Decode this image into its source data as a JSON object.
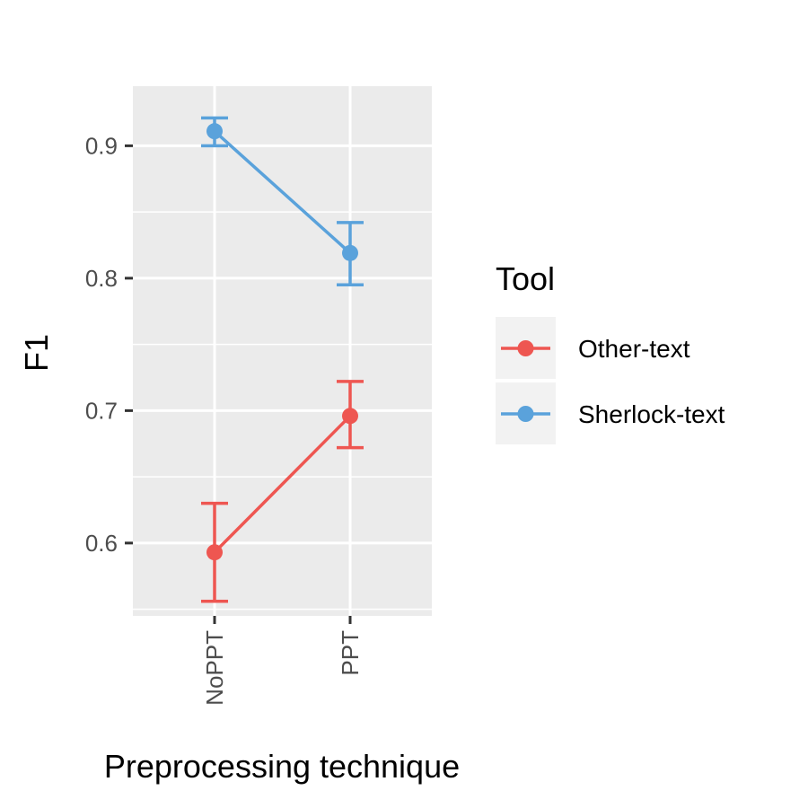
{
  "chart_data": {
    "type": "line",
    "xlabel": "Preprocessing technique",
    "ylabel": "F1",
    "categories": [
      "NoPPT",
      "PPT"
    ],
    "ylim": [
      0.545,
      0.945
    ],
    "yticks": [
      0.6,
      0.7,
      0.8,
      0.9
    ],
    "ytick_labels": [
      "0.6",
      "0.7",
      "0.8",
      "0.9"
    ],
    "grid": true,
    "legend": {
      "title": "Tool",
      "position": "right"
    },
    "series": [
      {
        "name": "Other-text",
        "color": "#ee5651",
        "values": [
          0.593,
          0.696
        ],
        "err_low": [
          0.556,
          0.672
        ],
        "err_high": [
          0.63,
          0.722
        ]
      },
      {
        "name": "Sherlock-text",
        "color": "#5aa2db",
        "values": [
          0.911,
          0.819
        ],
        "err_low": [
          0.9,
          0.795
        ],
        "err_high": [
          0.921,
          0.842
        ]
      }
    ]
  }
}
